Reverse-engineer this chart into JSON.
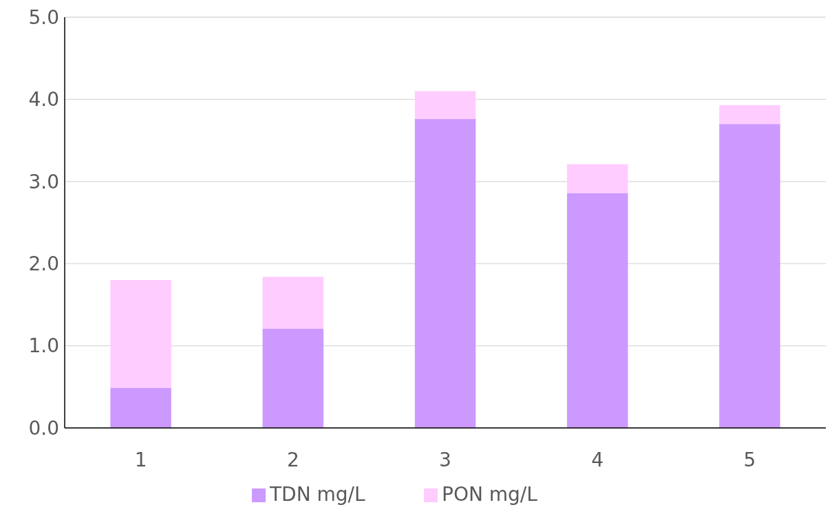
{
  "chart_data": {
    "type": "bar",
    "stacked": true,
    "categories": [
      "1",
      "2",
      "3",
      "4",
      "5"
    ],
    "series": [
      {
        "name": "TDN mg/L",
        "color": "#cc99ff",
        "values": [
          0.49,
          1.21,
          3.76,
          2.86,
          3.7
        ]
      },
      {
        "name": "PON mg/L",
        "color": "#ffccff",
        "values": [
          1.31,
          0.63,
          0.34,
          0.35,
          0.23
        ]
      }
    ],
    "ylim": [
      0,
      5
    ],
    "yticks": [
      {
        "value": 0,
        "label": "0.0"
      },
      {
        "value": 1,
        "label": "1.0"
      },
      {
        "value": 2,
        "label": "2.0"
      },
      {
        "value": 3,
        "label": "3.0"
      },
      {
        "value": 4,
        "label": "4.0"
      },
      {
        "value": 5,
        "label": "5.0"
      }
    ],
    "grid": "y",
    "legend": "bottom"
  }
}
